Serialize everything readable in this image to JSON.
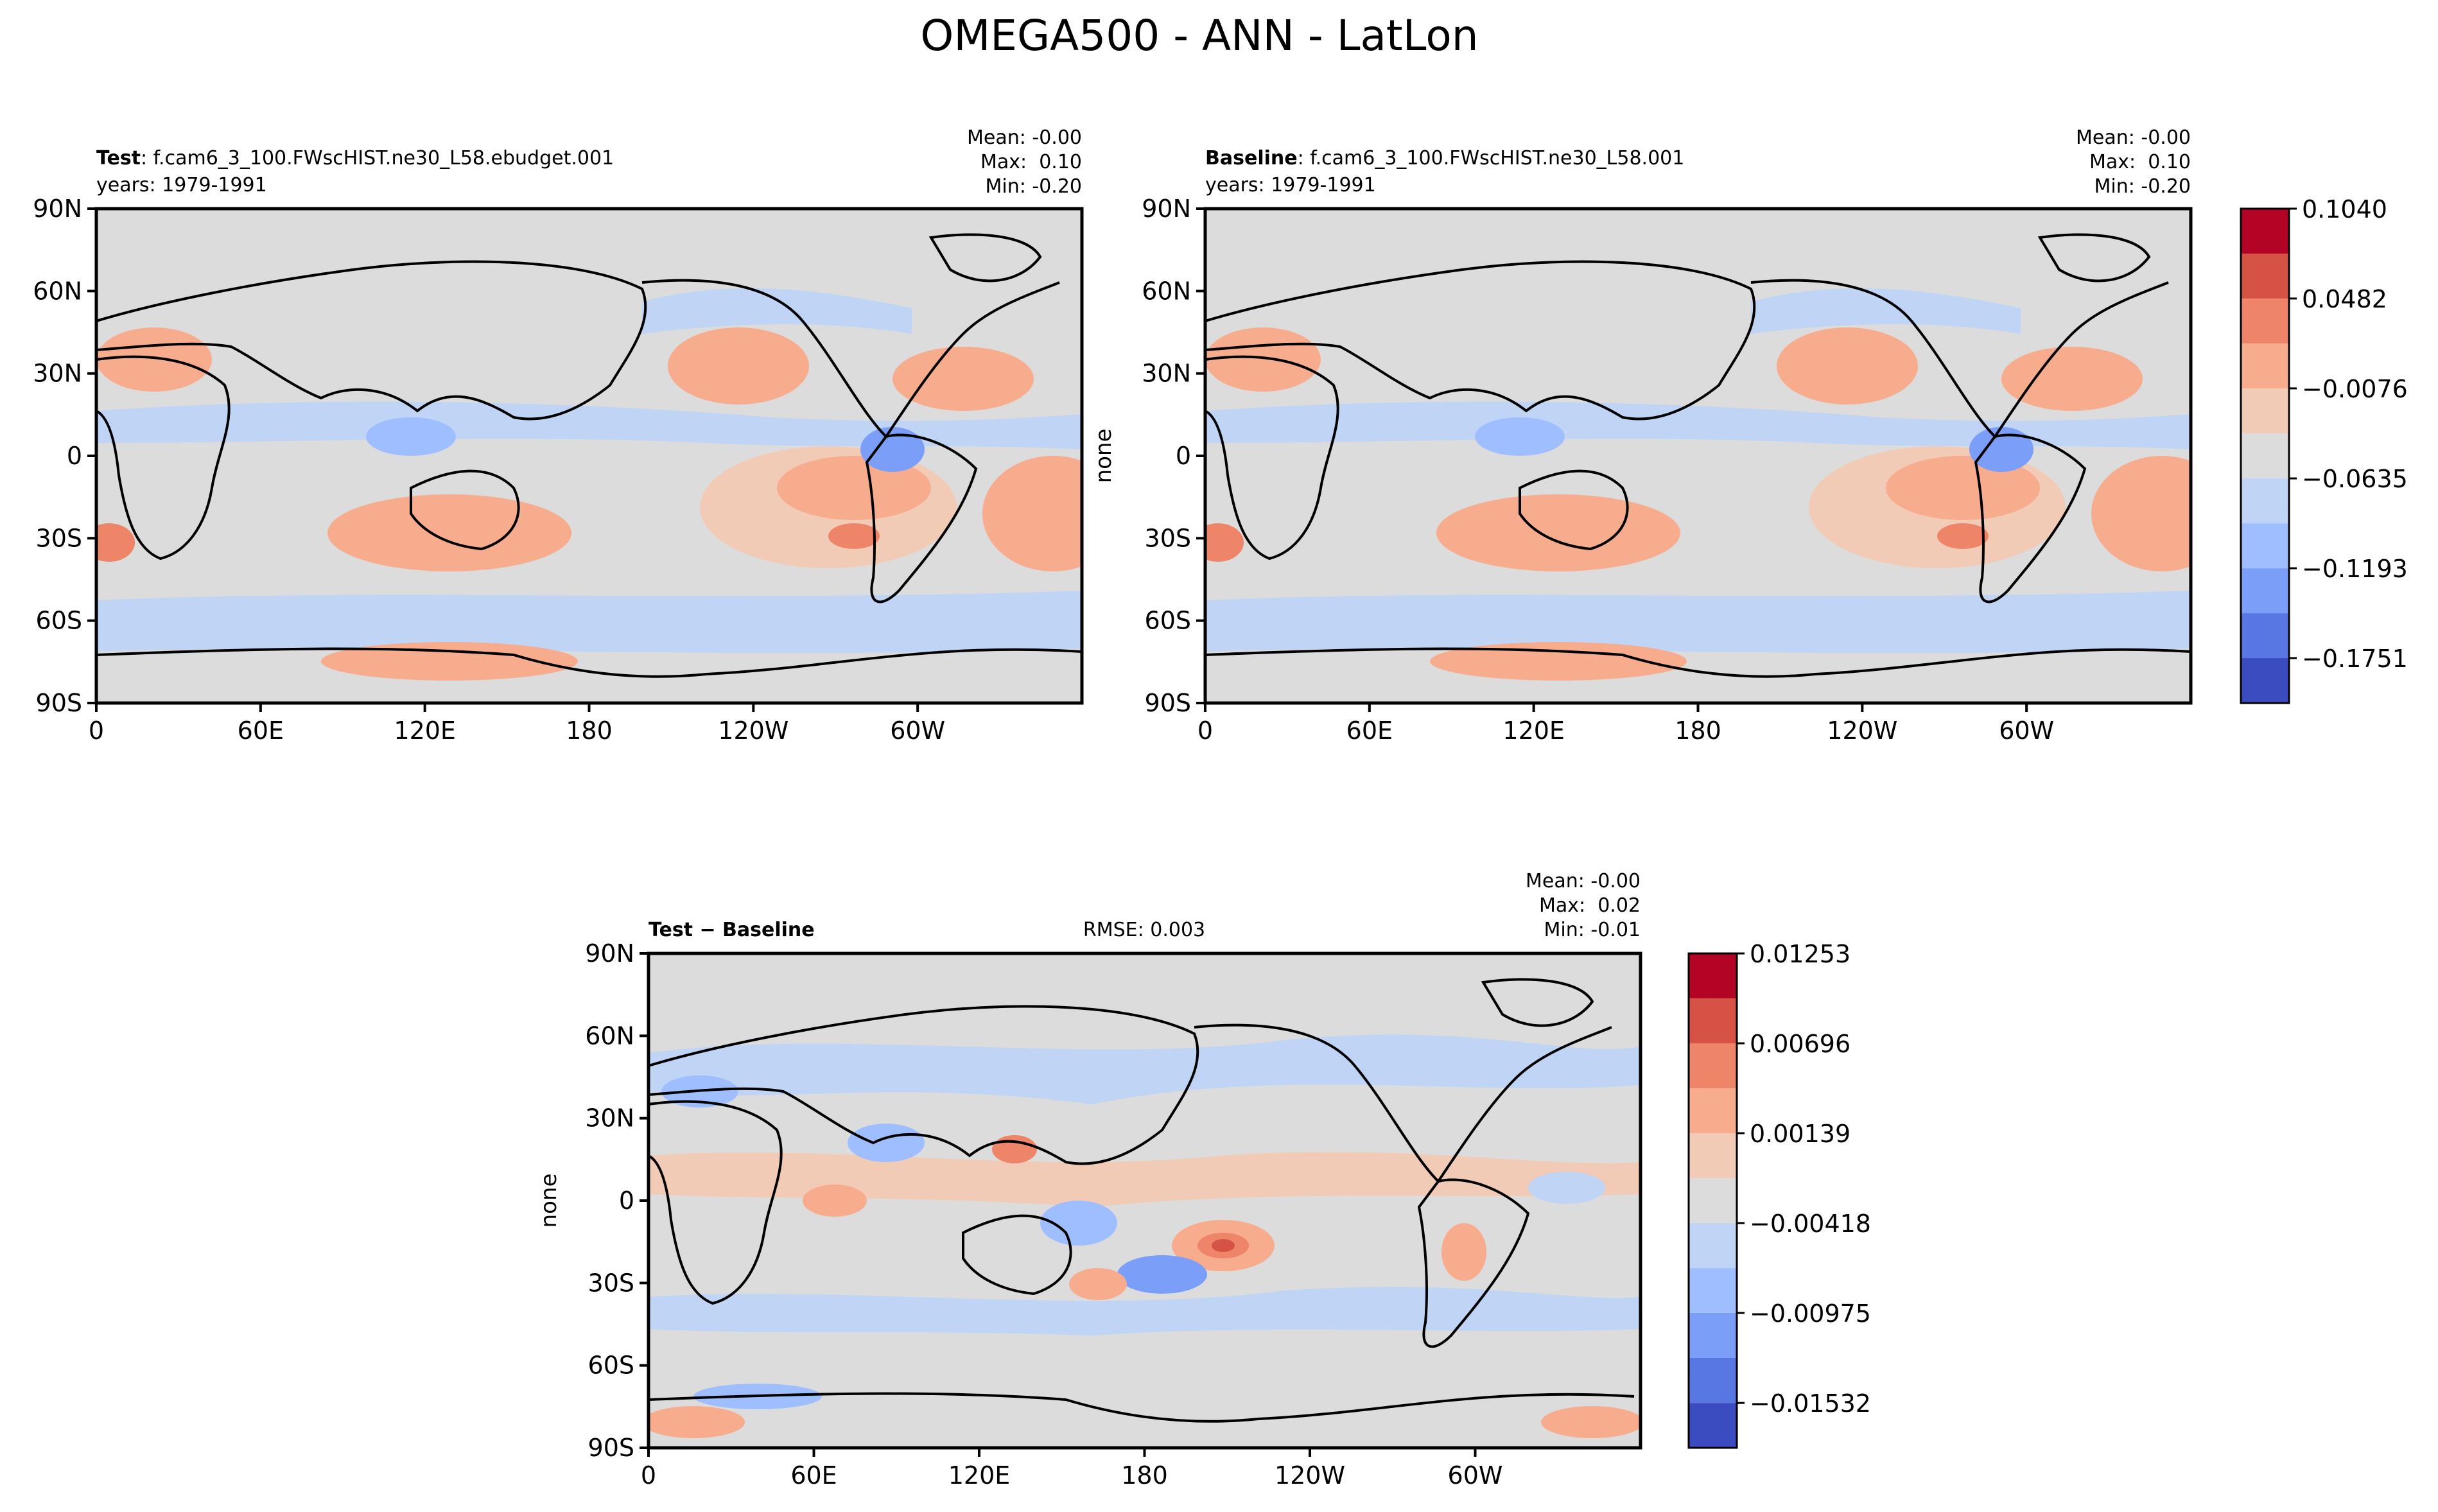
{
  "figure": {
    "title": "OMEGA500 - ANN - LatLon"
  },
  "axes": {
    "lat_ticks": [
      "90N",
      "60N",
      "30N",
      "0",
      "30S",
      "60S",
      "90S"
    ],
    "lon_ticks": [
      "0",
      "60E",
      "120E",
      "180",
      "120W",
      "60W"
    ]
  },
  "colors": {
    "main_levels": [
      "#3b4cc0",
      "#5977e3",
      "#7b9ff9",
      "#9ebeff",
      "#c0d4f5",
      "#dddcdc",
      "#f2cbb7",
      "#f7ac8e",
      "#ee8468",
      "#d65244",
      "#b40426"
    ],
    "diff_levels": [
      "#3b4cc0",
      "#5977e3",
      "#7b9ff9",
      "#9ebeff",
      "#c0d4f5",
      "#dddcdc",
      "#f2cbb7",
      "#f7ac8e",
      "#ee8468",
      "#d65244",
      "#b40426"
    ]
  },
  "panels": {
    "test": {
      "label_bold": "Test",
      "label_rest": ": f.cam6_3_100.FWscHIST.ne30_L58.ebudget.001",
      "years": "years: 1979-1991",
      "mean": "Mean: -0.00",
      "max": "Max:  0.10",
      "min": "Min: -0.20",
      "ylabel": ""
    },
    "baseline": {
      "label_bold": "Baseline",
      "label_rest": ": f.cam6_3_100.FWscHIST.ne30_L58.001",
      "years": "years: 1979-1991",
      "mean": "Mean: -0.00",
      "max": "Max:  0.10",
      "min": "Min: -0.20",
      "ylabel": "none"
    },
    "diff": {
      "label_bold": "Test − Baseline",
      "rmse": "RMSE: 0.003",
      "mean": "Mean: -0.00",
      "max": "Max:  0.02",
      "min": "Min: -0.01",
      "ylabel": "none"
    }
  },
  "colorbars": {
    "main": {
      "ticks": [
        "0.1040",
        "0.0482",
        "−0.0076",
        "−0.0635",
        "−0.1193",
        "−0.1751"
      ]
    },
    "diff": {
      "ticks": [
        "0.01253",
        "0.00696",
        "0.00139",
        "−0.00418",
        "−0.00975",
        "−0.01532"
      ]
    }
  },
  "chart_data": [
    {
      "type": "heatmap",
      "name": "Test",
      "title": "f.cam6_3_100.FWscHIST.ne30_L58.ebudget.001",
      "xlim": [
        0,
        360
      ],
      "ylim": [
        -90,
        90
      ],
      "x_ticks": [
        0,
        60,
        120,
        180,
        240,
        300
      ],
      "y_ticks": [
        90,
        60,
        30,
        0,
        -30,
        -60,
        -90
      ],
      "stats": {
        "mean": -0.0,
        "max": 0.1,
        "min": -0.2
      },
      "levels": [
        -0.203,
        -0.1751,
        -0.1472,
        -0.1193,
        -0.0914,
        -0.0635,
        -0.0355,
        -0.0076,
        0.0203,
        0.0482,
        0.0761,
        0.104
      ]
    },
    {
      "type": "heatmap",
      "name": "Baseline",
      "title": "f.cam6_3_100.FWscHIST.ne30_L58.001",
      "xlim": [
        0,
        360
      ],
      "ylim": [
        -90,
        90
      ],
      "x_ticks": [
        0,
        60,
        120,
        180,
        240,
        300
      ],
      "y_ticks": [
        90,
        60,
        30,
        0,
        -30,
        -60,
        -90
      ],
      "stats": {
        "mean": -0.0,
        "max": 0.1,
        "min": -0.2
      },
      "levels": [
        -0.203,
        -0.1751,
        -0.1472,
        -0.1193,
        -0.0914,
        -0.0635,
        -0.0355,
        -0.0076,
        0.0203,
        0.0482,
        0.0761,
        0.104
      ]
    },
    {
      "type": "heatmap",
      "name": "Test - Baseline",
      "xlim": [
        0,
        360
      ],
      "ylim": [
        -90,
        90
      ],
      "x_ticks": [
        0,
        60,
        120,
        180,
        240,
        300
      ],
      "y_ticks": [
        90,
        60,
        30,
        0,
        -30,
        -60,
        -90
      ],
      "stats": {
        "mean": -0.0,
        "max": 0.02,
        "min": -0.01,
        "rmse": 0.003
      },
      "levels": [
        -0.01532,
        -0.01254,
        -0.00975,
        -0.00696,
        -0.00418,
        -0.00139,
        0.00139,
        0.00418,
        0.00696,
        0.00975,
        0.01253,
        0.01532
      ]
    }
  ]
}
